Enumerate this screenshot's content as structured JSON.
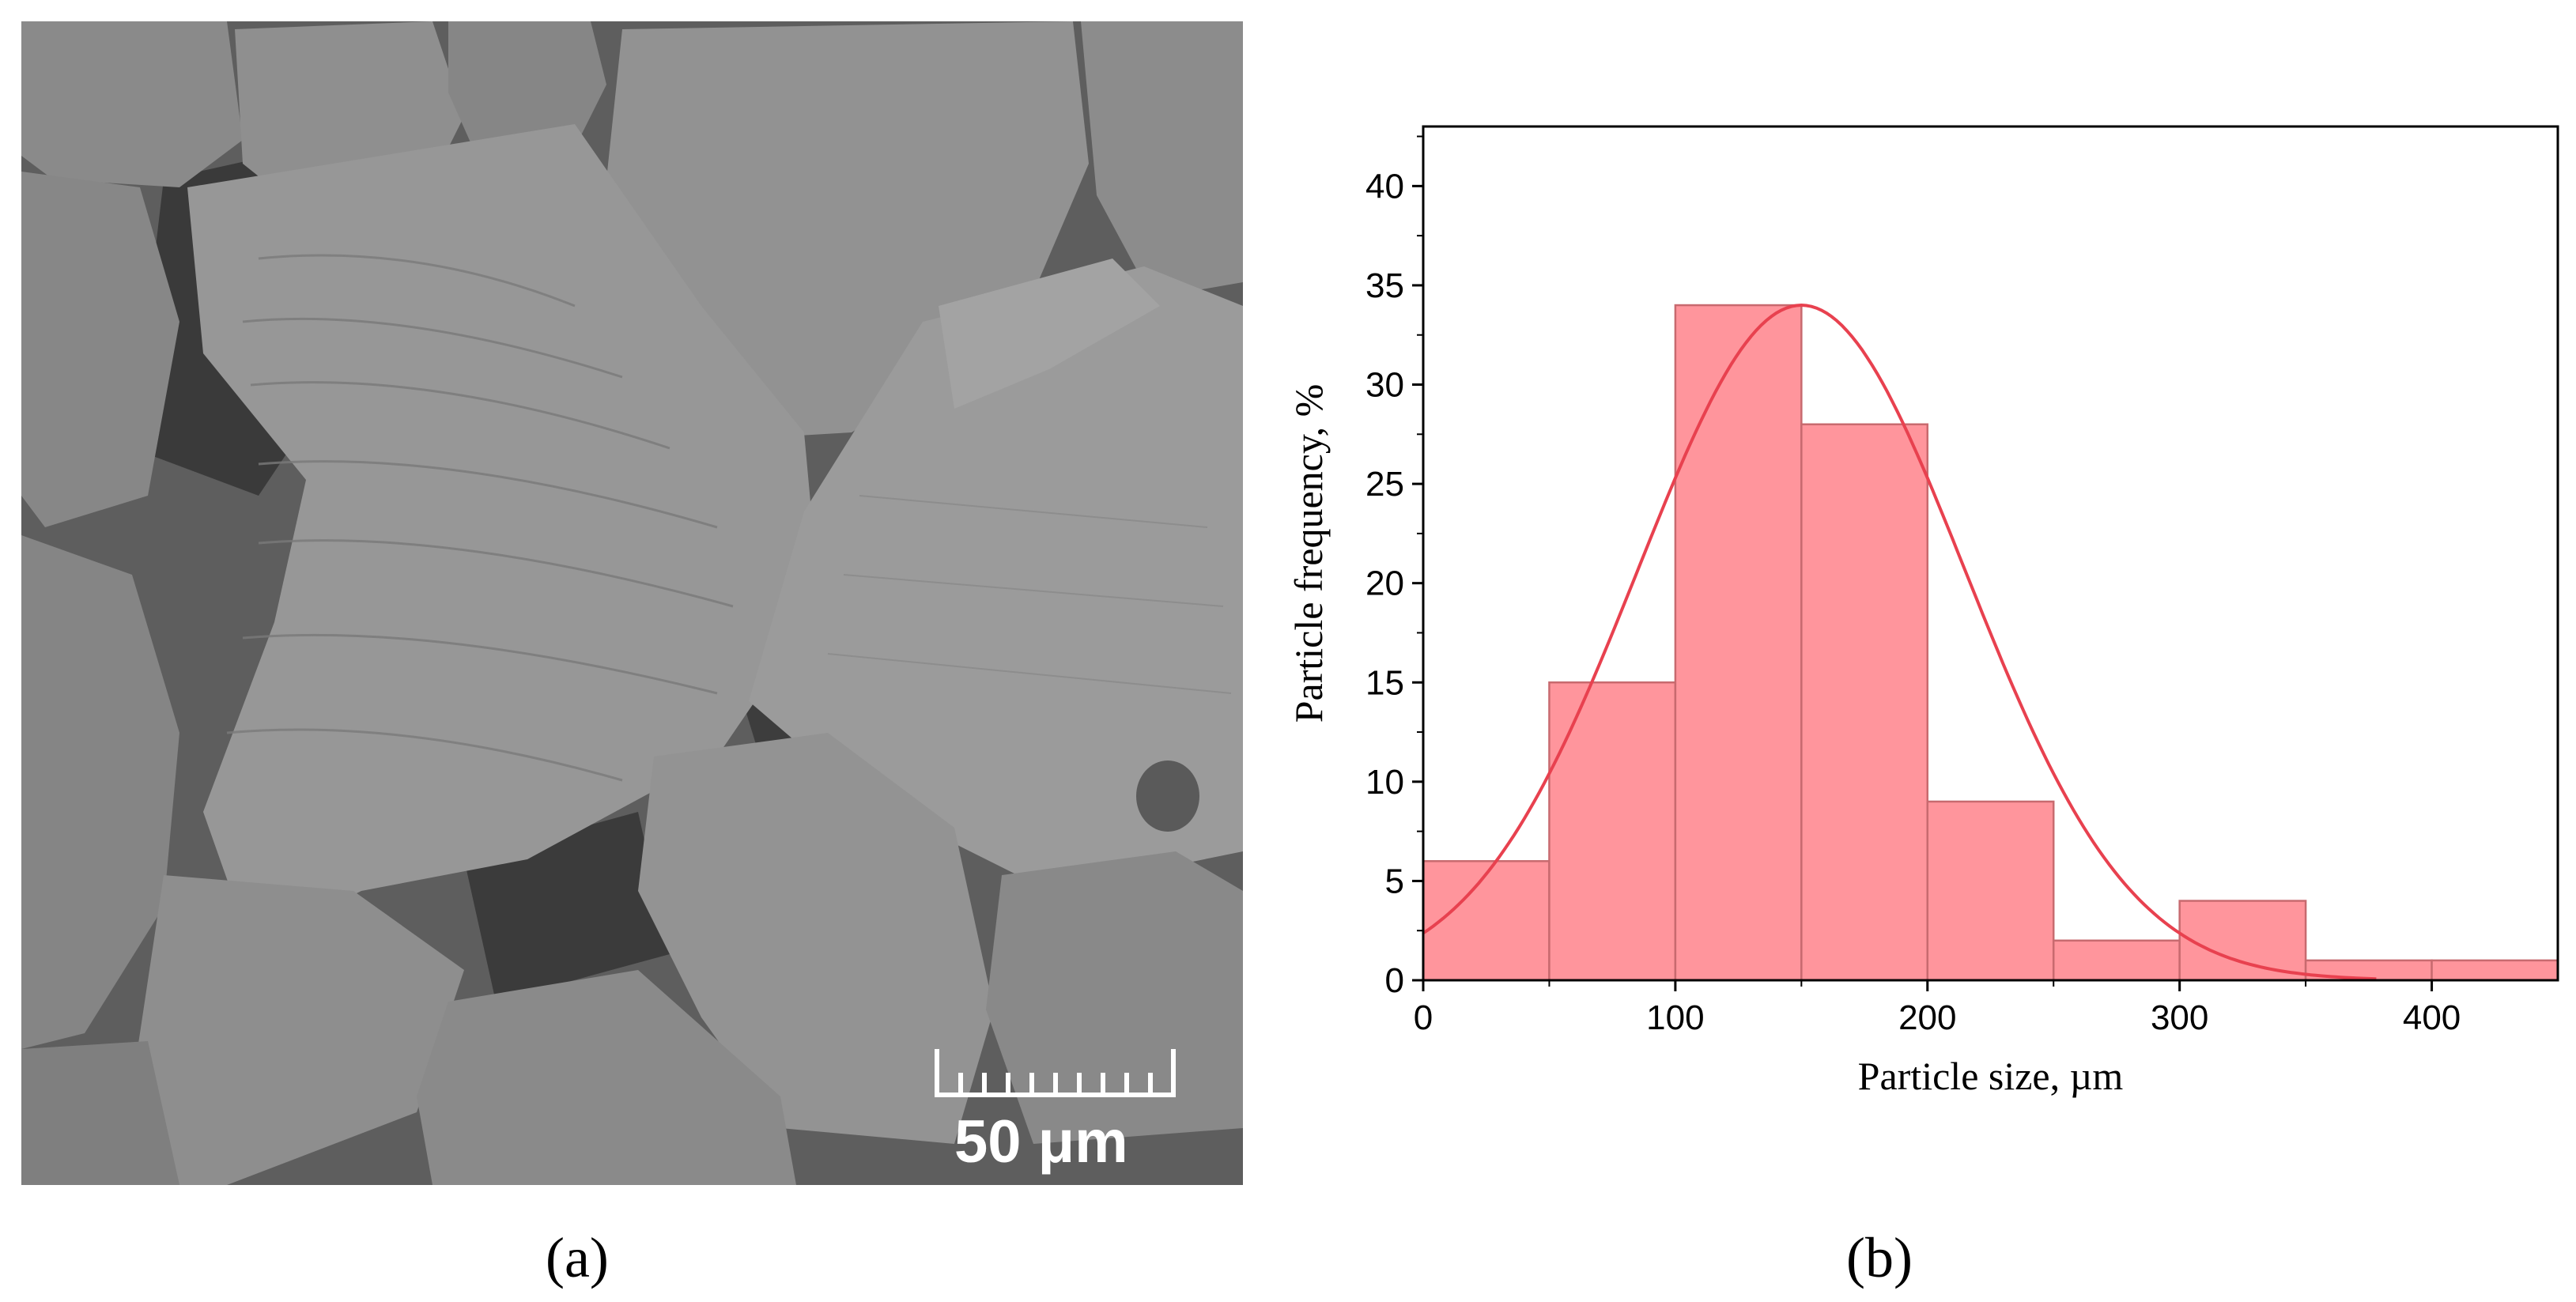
{
  "panel_a": {
    "scale_bar_label": "50 μm",
    "caption": "(a)"
  },
  "panel_b": {
    "caption": "(b)"
  },
  "colors": {
    "bar_fill": "#ff959c",
    "bar_stroke": "#c86a6f",
    "fit_curve": "#e8414f",
    "sem_background": "#6d6d6d"
  },
  "chart_data": {
    "type": "bar",
    "subtype": "histogram",
    "title": "",
    "xlabel": "Particle size, µm",
    "ylabel": "Particle frequency, %",
    "bin_edges": [
      0,
      50,
      100,
      150,
      200,
      250,
      300,
      350,
      400,
      450
    ],
    "values": [
      6,
      15,
      34,
      28,
      9,
      2,
      4,
      1,
      1
    ],
    "xlim": [
      0,
      450
    ],
    "ylim": [
      0,
      43
    ],
    "xticks": [
      0,
      100,
      200,
      300,
      400
    ],
    "yticks": [
      0,
      5,
      10,
      15,
      20,
      25,
      30,
      35,
      40
    ],
    "fit_curve": {
      "type": "gaussian",
      "peak_x": 150,
      "peak_y": 34,
      "sigma": 65,
      "x_range": [
        0,
        378
      ]
    },
    "grid": false,
    "legend": "none"
  }
}
